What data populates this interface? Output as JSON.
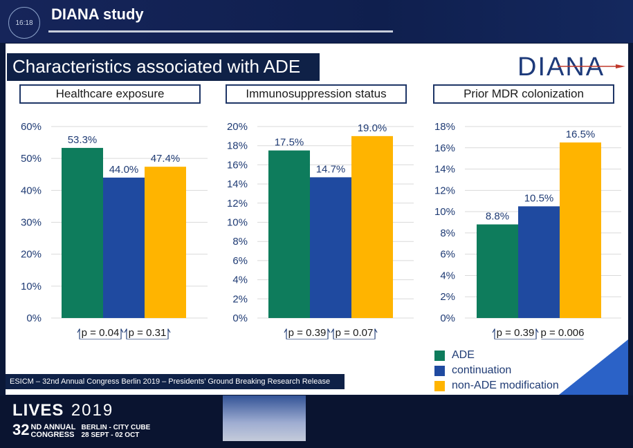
{
  "header": {
    "clock": "16:18",
    "study_title": "DIANA study"
  },
  "slide": {
    "title": "Characteristics associated with ADE",
    "logo": "DIANA",
    "footer_note": "ESICM – 32nd Annual Congress Berlin 2019 – Presidents’ Ground Breaking Research Release"
  },
  "branding": {
    "lives": "LIVES",
    "year": "2019",
    "ordinal": "32",
    "ordinal_suffix": "ND",
    "annual": "ANNUAL",
    "congress": "CONGRESS",
    "venue": "BERLIN - CITY CUBE",
    "dates": "28 SEPT - 02 OCT"
  },
  "colors": {
    "ADE": "#0e7c5c",
    "continuation": "#1f4aa0",
    "non-ADE modification": "#ffb400"
  },
  "chart_data": [
    {
      "type": "bar",
      "title": "Healthcare exposure",
      "categories": [
        "ADE",
        "continuation",
        "non-ADE modification"
      ],
      "values": [
        53.3,
        44.0,
        47.4
      ],
      "value_labels": [
        "53.3%",
        "44.0%",
        "47.4%"
      ],
      "ylim": [
        0,
        60
      ],
      "yticks": [
        0,
        10,
        20,
        30,
        40,
        50,
        60
      ],
      "ytick_labels": [
        "0%",
        "10%",
        "20%",
        "30%",
        "40%",
        "50%",
        "60%"
      ],
      "pvalues": [
        "p = 0.04",
        "p = 0.31"
      ],
      "grid": true
    },
    {
      "type": "bar",
      "title": "Immunosuppression status",
      "categories": [
        "ADE",
        "continuation",
        "non-ADE modification"
      ],
      "values": [
        17.5,
        14.7,
        19.0
      ],
      "value_labels": [
        "17.5%",
        "14.7%",
        "19.0%"
      ],
      "ylim": [
        0,
        20
      ],
      "yticks": [
        0,
        2,
        4,
        6,
        8,
        10,
        12,
        14,
        16,
        18,
        20
      ],
      "ytick_labels": [
        "0%",
        "2%",
        "4%",
        "6%",
        "8%",
        "10%",
        "12%",
        "14%",
        "16%",
        "18%",
        "20%"
      ],
      "pvalues": [
        "p = 0.39",
        "p = 0.07"
      ],
      "grid": true
    },
    {
      "type": "bar",
      "title": "Prior MDR colonization",
      "categories": [
        "ADE",
        "continuation",
        "non-ADE modification"
      ],
      "values": [
        8.8,
        10.5,
        16.5
      ],
      "value_labels": [
        "8.8%",
        "10.5%",
        "16.5%"
      ],
      "ylim": [
        0,
        18
      ],
      "yticks": [
        0,
        2,
        4,
        6,
        8,
        10,
        12,
        14,
        16,
        18
      ],
      "ytick_labels": [
        "0%",
        "2%",
        "4%",
        "6%",
        "8%",
        "10%",
        "12%",
        "14%",
        "16%",
        "18%"
      ],
      "pvalues": [
        "p = 0.39",
        "p = 0.006"
      ],
      "grid": true
    }
  ],
  "legend": {
    "items": [
      "ADE",
      "continuation",
      "non-ADE modification"
    ],
    "placement": "bottom-right"
  }
}
